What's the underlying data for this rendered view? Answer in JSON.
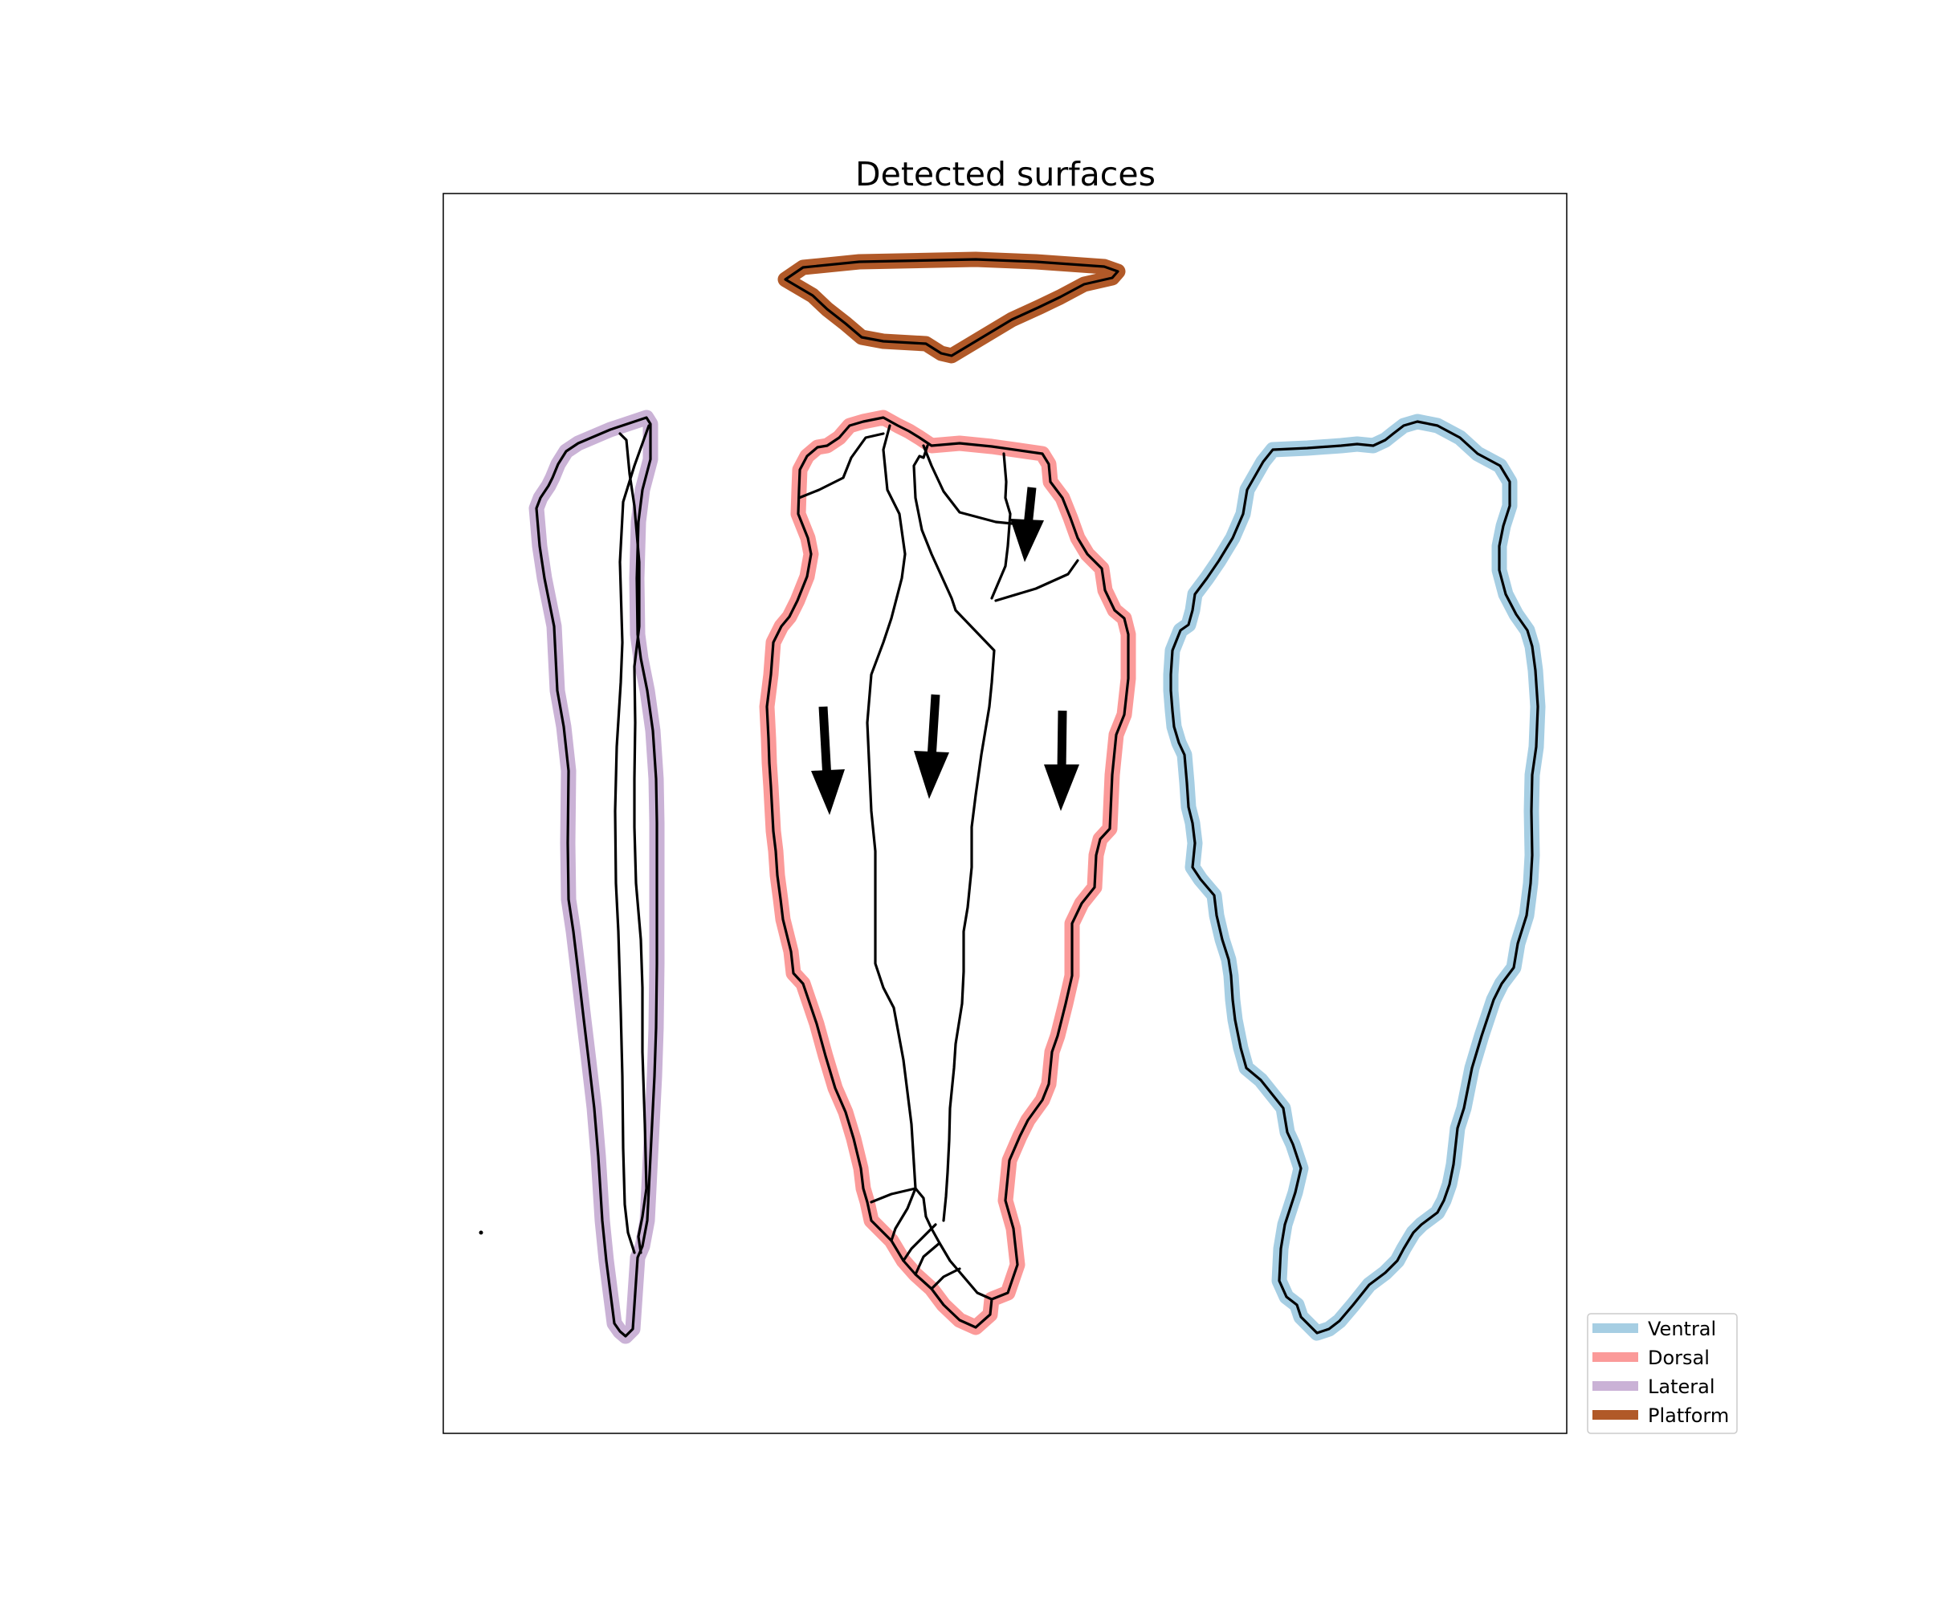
{
  "title": "Detected surfaces",
  "colors": {
    "ventral": "#a6cee3",
    "dorsal": "#fb9a99",
    "lateral": "#cab2d6",
    "platform": "#b15928",
    "outline": "#000000"
  },
  "legend": [
    {
      "label": "Ventral",
      "color_key": "ventral"
    },
    {
      "label": "Dorsal",
      "color_key": "dorsal"
    },
    {
      "label": "Lateral",
      "color_key": "lateral"
    },
    {
      "label": "Platform",
      "color_key": "platform"
    }
  ],
  "surfaces": {
    "platform": {
      "label": "Platform"
    },
    "lateral": {
      "label": "Lateral"
    },
    "dorsal": {
      "label": "Dorsal",
      "arrow_count": 4
    },
    "ventral": {
      "label": "Ventral"
    }
  }
}
